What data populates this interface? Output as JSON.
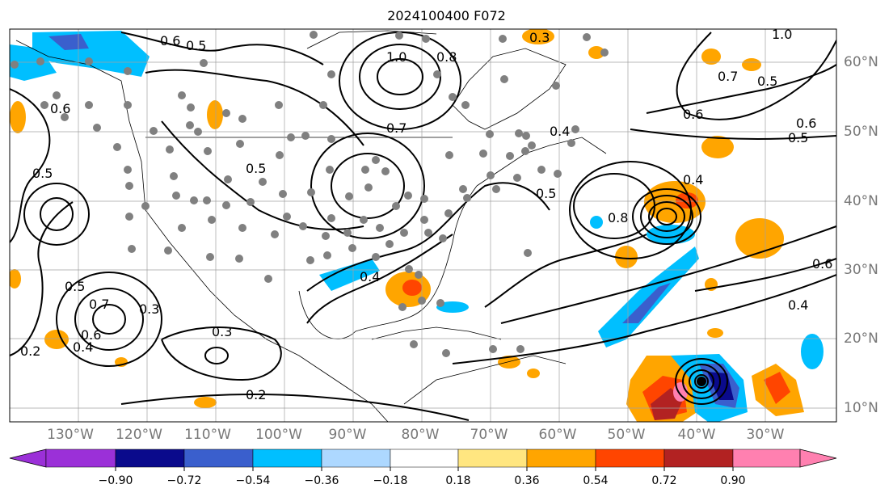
{
  "title": "2024100400 F072",
  "lon_labels": [
    "130°W",
    "120°W",
    "110°W",
    "100°W",
    "90°W",
    "80°W",
    "70°W",
    "60°W",
    "50°W",
    "40°W",
    "30°W"
  ],
  "lat_labels": [
    "60°N",
    "50°N",
    "40°N",
    "30°N",
    "20°N",
    "10°N"
  ],
  "colorbar": {
    "ticks": [
      "−0.90",
      "−0.72",
      "−0.54",
      "−0.36",
      "−0.18",
      "0.18",
      "0.36",
      "0.54",
      "0.72",
      "0.90"
    ],
    "colors": {
      "under": "#9b30d8",
      "lt_-0.72": "#0a0a8c",
      "lt_-0.54": "#3a5fcd",
      "lt_-0.36": "#00bfff",
      "lt_-0.18": "#add8ff",
      "neutral": "#ffffff",
      "lt_0.36": "#ffe680",
      "lt_0.54": "#ffa500",
      "lt_0.72": "#ff4500",
      "lt_0.90": "#b22222",
      "over": "#ff80b0"
    }
  },
  "contour_labels": [
    {
      "text": "0.6"
    },
    {
      "text": "0.5"
    },
    {
      "text": "1.0"
    },
    {
      "text": "0.8"
    },
    {
      "text": "0.3"
    },
    {
      "text": "0.7"
    },
    {
      "text": "0.4"
    },
    {
      "text": "0.5"
    },
    {
      "text": "0.6"
    },
    {
      "text": "0.7"
    },
    {
      "text": "0.5"
    },
    {
      "text": "0.3"
    },
    {
      "text": "0.4"
    },
    {
      "text": "0.5"
    },
    {
      "text": "0.6"
    },
    {
      "text": "0.2"
    },
    {
      "text": "0.3"
    },
    {
      "text": "0.2"
    },
    {
      "text": "0.4"
    },
    {
      "text": "0.6"
    },
    {
      "text": "0.5"
    },
    {
      "text": "0.4"
    },
    {
      "text": "0.7"
    },
    {
      "text": "0.4"
    },
    {
      "text": "0.5"
    },
    {
      "text": "0.8"
    },
    {
      "text": "0.6"
    },
    {
      "text": "1.0"
    },
    {
      "text": "0.5"
    },
    {
      "text": "0.6"
    }
  ],
  "legend_colors": {
    "contour": "#000000",
    "grid": "#a0a0a0",
    "obs_dot": "#808080"
  }
}
